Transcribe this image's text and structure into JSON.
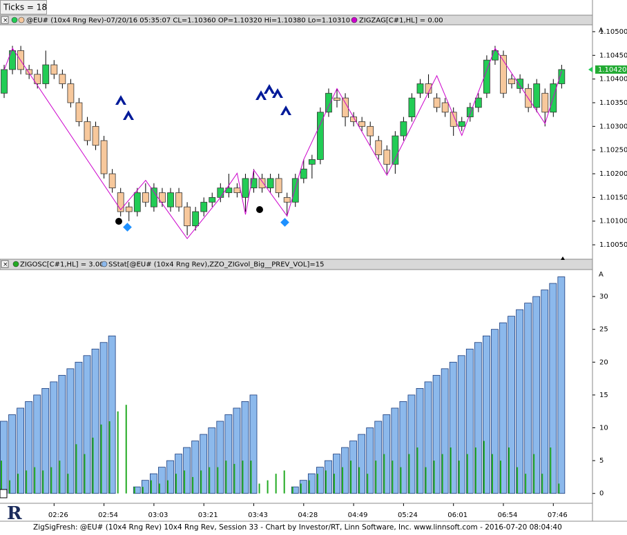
{
  "ticks_label": "Ticks = 18",
  "scale_button": "A",
  "footer": "ZigSigFresh: @EU# (10x4 Rng Rev) 10x4 Rng Rev, Session 33 - Chart by Investor/RT, Linn Software, Inc. www.linnsoft.com - 2016-07-20 08:04:40",
  "chart_data": [
    {
      "type": "candlestick",
      "title": "@EU# (10x4 Rng Rev)-07/20/16 05:35:07 CL=1.10360 OP=1.10320 Hi=1.10380 Lo=1.10310",
      "up_color": "#22cc55",
      "down_color": "#f7c89c",
      "open": [
        1.1037,
        1.1042,
        1.1046,
        1.1042,
        1.1041,
        1.1039,
        1.1043,
        1.1041,
        1.1039,
        1.1035,
        1.1031,
        1.103,
        1.1027,
        1.102,
        1.1016,
        1.1013,
        1.1012,
        1.1016,
        1.1013,
        1.1016,
        1.1013,
        1.1016,
        1.1013,
        1.1009,
        1.1012,
        1.1014,
        1.1015,
        1.1016,
        1.1017,
        1.1015,
        1.1017,
        1.1019,
        1.1017,
        1.1019,
        1.1015,
        1.1014,
        1.1019,
        1.1022,
        1.1023,
        1.1033,
        1.1036,
        1.1036,
        1.1032,
        1.1031,
        1.103,
        1.1027,
        1.1025,
        1.1022,
        1.1028,
        1.1032,
        1.1037,
        1.1039,
        1.1036,
        1.1035,
        1.1033,
        1.103,
        1.1032,
        1.1034,
        1.1037,
        1.1044,
        1.1045,
        1.104,
        1.1038,
        1.1038,
        1.1034,
        1.1037,
        1.1033,
        1.1039
      ],
      "high": [
        1.1043,
        1.1047,
        1.1047,
        1.1043,
        1.1042,
        1.1046,
        1.1044,
        1.1042,
        1.104,
        1.1036,
        1.1032,
        1.1031,
        1.1028,
        1.1021,
        1.1017,
        1.1014,
        1.1017,
        1.1018,
        1.1018,
        1.1017,
        1.1017,
        1.1017,
        1.1014,
        1.1013,
        1.1015,
        1.1016,
        1.1018,
        1.102,
        1.1018,
        1.102,
        1.1021,
        1.102,
        1.102,
        1.102,
        1.1016,
        1.102,
        1.1023,
        1.1024,
        1.1034,
        1.1038,
        1.1038,
        1.1037,
        1.1033,
        1.1032,
        1.1031,
        1.1028,
        1.1026,
        1.1029,
        1.1032,
        1.1037,
        1.104,
        1.1041,
        1.1037,
        1.1036,
        1.1034,
        1.1032,
        1.1035,
        1.1037,
        1.1045,
        1.1047,
        1.1046,
        1.1041,
        1.1041,
        1.1039,
        1.104,
        1.1038,
        1.104,
        1.1043
      ],
      "low": [
        1.1036,
        1.1041,
        1.1041,
        1.104,
        1.1038,
        1.1038,
        1.104,
        1.1038,
        1.1034,
        1.103,
        1.1026,
        1.1025,
        1.1019,
        1.1016,
        1.1011,
        1.101,
        1.1011,
        1.1013,
        1.1012,
        1.1013,
        1.1012,
        1.1012,
        1.1007,
        1.1008,
        1.1011,
        1.1013,
        1.1014,
        1.1015,
        1.1015,
        1.1012,
        1.1016,
        1.1016,
        1.1016,
        1.1015,
        1.1011,
        1.1013,
        1.1018,
        1.1019,
        1.1022,
        1.1032,
        1.1034,
        1.103,
        1.103,
        1.1029,
        1.1026,
        1.1023,
        1.102,
        1.102,
        1.1027,
        1.1031,
        1.1036,
        1.1036,
        1.1033,
        1.1032,
        1.1028,
        1.1029,
        1.1031,
        1.1033,
        1.1036,
        1.1043,
        1.1036,
        1.1038,
        1.1037,
        1.1033,
        1.1033,
        1.103,
        1.1032,
        1.1038
      ],
      "close": [
        1.1042,
        1.1046,
        1.1042,
        1.1041,
        1.1039,
        1.1043,
        1.1041,
        1.1039,
        1.1035,
        1.1031,
        1.1027,
        1.1026,
        1.102,
        1.1017,
        1.1012,
        1.1012,
        1.1016,
        1.1014,
        1.1017,
        1.1014,
        1.1016,
        1.1013,
        1.1009,
        1.1012,
        1.1014,
        1.1015,
        1.1017,
        1.1017,
        1.1016,
        1.1019,
        1.1019,
        1.1017,
        1.1019,
        1.1016,
        1.1014,
        1.1019,
        1.1021,
        1.1023,
        1.1033,
        1.1037,
        1.10355,
        1.1032,
        1.1031,
        1.103,
        1.1028,
        1.1024,
        1.1022,
        1.1028,
        1.1031,
        1.1036,
        1.1039,
        1.1037,
        1.1034,
        1.1033,
        1.103,
        1.1031,
        1.1034,
        1.1036,
        1.1044,
        1.1046,
        1.1037,
        1.1039,
        1.104,
        1.1034,
        1.1039,
        1.1033,
        1.1039,
        1.1042
      ],
      "series": [
        {
          "name": "ZIGZAG[C#1,HL] = 0.00",
          "color": "#cc00cc",
          "x": [
            0,
            1,
            14,
            17,
            22,
            26,
            28,
            29,
            30,
            34,
            36,
            40,
            46,
            52,
            55,
            59,
            65,
            67
          ],
          "values": [
            1.10419,
            1.10465,
            1.10124,
            1.10186,
            1.10063,
            1.1015,
            1.10201,
            1.10114,
            1.10208,
            1.10111,
            1.1023,
            1.1038,
            1.10197,
            1.10407,
            1.10281,
            1.10465,
            1.10306,
            1.10417
          ]
        }
      ],
      "last_price": {
        "value": 1.1042,
        "label": "1.10420"
      },
      "ylim": [
        1.10021,
        1.10513
      ],
      "yticks": [
        {
          "value": 1.105,
          "label": "1.10500"
        },
        {
          "value": 1.1045,
          "label": "1.10450"
        },
        {
          "value": 1.104,
          "label": "1.10400"
        },
        {
          "value": 1.1035,
          "label": "1.10350"
        },
        {
          "value": 1.103,
          "label": "1.10300"
        },
        {
          "value": 1.1025,
          "label": "1.10250"
        },
        {
          "value": 1.102,
          "label": "1.10200"
        },
        {
          "value": 1.1015,
          "label": "1.10150"
        },
        {
          "value": 1.101,
          "label": "1.10100"
        },
        {
          "value": 1.1005,
          "label": "1.10050"
        }
      ]
    },
    {
      "type": "bar",
      "annotation": "0",
      "categories": [
        null,
        null,
        null,
        null,
        null,
        null,
        "02:26",
        null,
        null,
        null,
        null,
        null,
        "02:54",
        null,
        null,
        null,
        null,
        null,
        "03:03",
        null,
        null,
        null,
        null,
        null,
        "03:21",
        null,
        null,
        null,
        null,
        null,
        "03:43",
        null,
        null,
        null,
        null,
        null,
        "04:28",
        null,
        null,
        null,
        null,
        null,
        "04:49",
        null,
        null,
        null,
        null,
        null,
        "05:24",
        null,
        null,
        null,
        null,
        null,
        "06:01",
        null,
        null,
        null,
        null,
        null,
        "06:54",
        null,
        null,
        null,
        null,
        null,
        "07:46",
        null
      ],
      "series": [
        {
          "name": "ZIGOSC[C#1,HL] = 3.00",
          "color": "#22aa22",
          "values": [
            5,
            2,
            3,
            3.5,
            4,
            3.5,
            4,
            5,
            3,
            7.5,
            6,
            8.5,
            10.5,
            11,
            12.5,
            13.5,
            1,
            1,
            2,
            1.5,
            2,
            3,
            3.5,
            2.5,
            3.5,
            4,
            4,
            5,
            4.5,
            5,
            5,
            1.5,
            2,
            3,
            3.5,
            1,
            1.5,
            2,
            3,
            3.5,
            3,
            4,
            5,
            4,
            3,
            5,
            6,
            5,
            4,
            6,
            7,
            4,
            5,
            6,
            7,
            5,
            6,
            7,
            8,
            6,
            5,
            7,
            4,
            3,
            6,
            3,
            7,
            1.5
          ]
        },
        {
          "name": "SStat[@EU# (10x4 Rng Rev),ZZO_ZIGvol_Big__PREV_VOL]=15",
          "color": "#8cb9ec",
          "values": [
            11,
            12,
            13,
            14,
            15,
            16,
            17,
            18,
            19,
            20,
            21,
            22,
            23,
            24,
            null,
            null,
            1,
            2,
            3,
            4,
            5,
            6,
            7,
            8,
            9,
            10,
            11,
            12,
            13,
            14,
            15,
            null,
            null,
            null,
            null,
            1,
            2,
            3,
            4,
            5,
            6,
            7,
            8,
            9,
            10,
            11,
            12,
            13,
            14,
            15,
            16,
            17,
            18,
            19,
            20,
            21,
            22,
            23,
            24,
            25,
            26,
            27,
            28,
            29,
            30,
            31,
            32,
            33
          ]
        }
      ],
      "ylim": [
        -1.5,
        34
      ],
      "yticks": [
        0,
        5,
        10,
        15,
        20,
        25,
        30
      ]
    }
  ]
}
